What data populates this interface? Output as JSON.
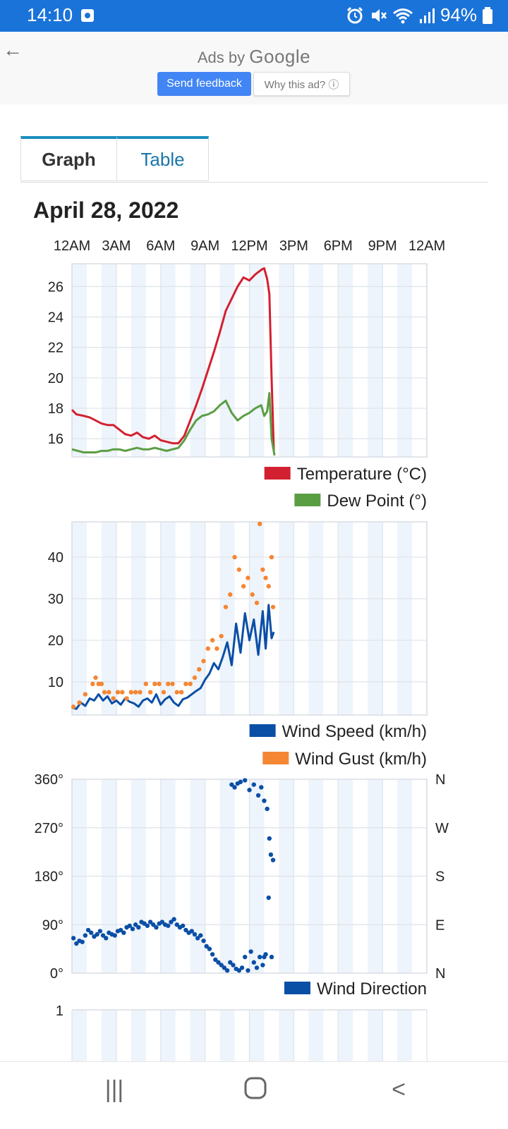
{
  "status_bar": {
    "time": "14:10",
    "battery": "94%",
    "icons": [
      "screenshot-icon",
      "alarm-icon",
      "mute-icon",
      "wifi-icon",
      "signal-icon",
      "battery-icon"
    ]
  },
  "ad": {
    "title_prefix": "Ads by",
    "title_brand": "Google",
    "feedback_label": "Send feedback",
    "why_label": "Why this ad? ⓘ"
  },
  "tabs": [
    {
      "label": "Graph",
      "active": true
    },
    {
      "label": "Table",
      "active": false
    }
  ],
  "date_title": "April 28, 2022",
  "time_axis": [
    "12AM",
    "3AM",
    "6AM",
    "9AM",
    "12PM",
    "3PM",
    "6PM",
    "9PM",
    "12AM"
  ],
  "chart_data": [
    {
      "type": "line",
      "x_unit": "hour of day",
      "xlim": [
        0,
        24
      ],
      "ylim": [
        14.8,
        27.5
      ],
      "yticks": [
        16,
        18,
        20,
        22,
        24,
        26
      ],
      "grid": true,
      "legend_position": "bottom-right",
      "series": [
        {
          "name": "Temperature (°C)",
          "color": "#d32030",
          "x": [
            0,
            0.3,
            0.8,
            1.2,
            1.6,
            2.0,
            2.4,
            2.8,
            3.2,
            3.6,
            4.0,
            4.4,
            4.8,
            5.2,
            5.6,
            6.0,
            6.4,
            6.8,
            7.2,
            7.6,
            8.0,
            8.4,
            8.8,
            9.2,
            9.6,
            10.0,
            10.4,
            10.8,
            11.2,
            11.6,
            12.0,
            12.4,
            12.8,
            13.0,
            13.2,
            13.35,
            13.5,
            13.65
          ],
          "y": [
            17.9,
            17.6,
            17.5,
            17.4,
            17.2,
            17.0,
            16.9,
            16.9,
            16.6,
            16.3,
            16.2,
            16.4,
            16.1,
            16.0,
            16.2,
            15.9,
            15.8,
            15.7,
            15.7,
            16.2,
            17.2,
            18.2,
            19.3,
            20.5,
            21.7,
            23.0,
            24.4,
            25.2,
            26.0,
            26.6,
            26.4,
            26.8,
            27.1,
            27.2,
            26.5,
            25.5,
            20.0,
            15.2
          ]
        },
        {
          "name": "Dew Point (°)",
          "color": "#5a9e44",
          "x": [
            0,
            0.4,
            0.8,
            1.2,
            1.6,
            2.0,
            2.4,
            2.8,
            3.2,
            3.6,
            4.0,
            4.4,
            4.8,
            5.2,
            5.6,
            6.0,
            6.4,
            6.8,
            7.2,
            7.6,
            8.0,
            8.4,
            8.8,
            9.2,
            9.6,
            10.0,
            10.4,
            10.8,
            11.2,
            11.6,
            12.0,
            12.4,
            12.8,
            13.0,
            13.2,
            13.35,
            13.5,
            13.7
          ],
          "y": [
            15.3,
            15.2,
            15.1,
            15.1,
            15.1,
            15.2,
            15.2,
            15.3,
            15.3,
            15.2,
            15.3,
            15.4,
            15.3,
            15.3,
            15.4,
            15.3,
            15.2,
            15.3,
            15.4,
            15.9,
            16.6,
            17.2,
            17.5,
            17.6,
            17.8,
            18.2,
            18.5,
            17.7,
            17.2,
            17.5,
            17.7,
            18.0,
            18.2,
            17.5,
            17.8,
            19.0,
            16.0,
            14.9
          ]
        }
      ]
    },
    {
      "type": "line",
      "x_unit": "hour of day",
      "xlim": [
        0,
        24
      ],
      "ylim": [
        2,
        48.5
      ],
      "yticks": [
        10,
        20,
        30,
        40
      ],
      "grid": true,
      "legend_position": "bottom-right",
      "series": [
        {
          "name": "Wind Speed (km/h)",
          "color": "#0a4fa6",
          "style": "line",
          "x": [
            0,
            0.3,
            0.6,
            0.9,
            1.2,
            1.5,
            1.8,
            2.1,
            2.4,
            2.7,
            3.0,
            3.3,
            3.6,
            3.9,
            4.2,
            4.5,
            4.8,
            5.1,
            5.4,
            5.7,
            6.0,
            6.3,
            6.6,
            6.9,
            7.2,
            7.5,
            7.8,
            8.1,
            8.4,
            8.7,
            9.0,
            9.3,
            9.6,
            9.9,
            10.2,
            10.5,
            10.8,
            11.1,
            11.4,
            11.7,
            12.0,
            12.3,
            12.6,
            12.9,
            13.1,
            13.3,
            13.5,
            13.65
          ],
          "y": [
            3.8,
            3.5,
            5.0,
            4.2,
            6.0,
            5.5,
            7.0,
            5.5,
            6.5,
            4.8,
            5.5,
            4.5,
            6.0,
            5.2,
            4.8,
            4.0,
            5.5,
            6.0,
            5.0,
            7.0,
            4.5,
            5.8,
            6.5,
            5.0,
            4.2,
            5.8,
            6.2,
            7.0,
            7.8,
            8.5,
            10.5,
            12.0,
            14.5,
            13.0,
            16.0,
            19.5,
            14.0,
            24.0,
            17.0,
            26.5,
            20.0,
            25.0,
            16.5,
            27.0,
            18.0,
            28.5,
            20.5,
            22.0
          ]
        },
        {
          "name": "Wind Gust (km/h)",
          "color": "#f58634",
          "style": "points",
          "x": [
            0.1,
            0.5,
            0.9,
            1.4,
            1.6,
            1.8,
            2.0,
            2.2,
            2.5,
            2.8,
            3.1,
            3.4,
            3.7,
            4.0,
            4.3,
            4.6,
            5.0,
            5.3,
            5.6,
            5.9,
            6.2,
            6.5,
            6.8,
            7.1,
            7.4,
            7.7,
            8.0,
            8.3,
            8.6,
            8.9,
            9.2,
            9.5,
            9.8,
            10.1,
            10.4,
            10.7,
            11.0,
            11.3,
            11.6,
            11.9,
            12.2,
            12.5,
            12.7,
            12.9,
            13.1,
            13.3,
            13.5,
            13.6
          ],
          "y": [
            4,
            5,
            7,
            9.5,
            11,
            9.5,
            9.5,
            7.5,
            7.5,
            6,
            7.5,
            7.5,
            6,
            7.5,
            7.5,
            7.5,
            9.5,
            7.5,
            9.5,
            9.5,
            7.5,
            9.5,
            9.5,
            7.5,
            7.5,
            9.5,
            9.5,
            11,
            13,
            15,
            18,
            20,
            18,
            21,
            28,
            31,
            40,
            37,
            33,
            35,
            31,
            29,
            48,
            37,
            35,
            33,
            40,
            28
          ]
        }
      ]
    },
    {
      "type": "scatter",
      "x_unit": "hour of day",
      "xlim": [
        0,
        24
      ],
      "ylim": [
        0,
        360
      ],
      "yticks": [
        0,
        90,
        180,
        270,
        360
      ],
      "y_tick_labels_left": [
        "0°",
        "90°",
        "180°",
        "270°",
        "360°"
      ],
      "y_tick_labels_right": [
        "N",
        "E",
        "S",
        "W",
        "N"
      ],
      "grid": true,
      "legend_position": "bottom-right",
      "series": [
        {
          "name": "Wind Direction",
          "color": "#0a4fa6",
          "x": [
            0.1,
            0.3,
            0.5,
            0.7,
            0.9,
            1.1,
            1.3,
            1.5,
            1.7,
            1.9,
            2.1,
            2.3,
            2.5,
            2.7,
            2.9,
            3.1,
            3.3,
            3.5,
            3.7,
            3.9,
            4.1,
            4.3,
            4.5,
            4.7,
            4.9,
            5.1,
            5.3,
            5.5,
            5.7,
            5.9,
            6.1,
            6.3,
            6.5,
            6.7,
            6.9,
            7.1,
            7.3,
            7.5,
            7.7,
            7.9,
            8.1,
            8.3,
            8.5,
            8.7,
            8.9,
            9.1,
            9.3,
            9.5,
            9.7,
            9.9,
            10.1,
            10.3,
            10.5,
            10.7,
            10.9,
            11.1,
            11.3,
            11.5,
            11.7,
            11.9,
            12.1,
            12.3,
            12.5,
            12.7,
            12.9,
            13.0,
            13.1,
            13.3,
            13.5,
            10.8,
            11.0,
            11.2,
            11.4,
            11.7,
            12.0,
            12.3,
            12.6,
            12.8,
            13.0,
            13.2,
            13.35,
            13.45,
            13.6
          ],
          "y": [
            65,
            55,
            60,
            58,
            70,
            80,
            75,
            68,
            72,
            78,
            70,
            65,
            75,
            72,
            70,
            78,
            80,
            75,
            85,
            88,
            82,
            90,
            85,
            95,
            92,
            88,
            95,
            90,
            85,
            92,
            95,
            90,
            88,
            95,
            100,
            90,
            85,
            88,
            80,
            75,
            78,
            72,
            65,
            70,
            60,
            50,
            45,
            35,
            25,
            20,
            15,
            10,
            5,
            20,
            15,
            8,
            5,
            10,
            30,
            5,
            40,
            20,
            10,
            30,
            15,
            30,
            35,
            140,
            30,
            350,
            345,
            352,
            355,
            358,
            340,
            350,
            330,
            345,
            320,
            305,
            250,
            220,
            210
          ]
        }
      ]
    }
  ],
  "nav_bar": {
    "recents_label": "|||",
    "home_label": "○",
    "back_label": "<"
  }
}
